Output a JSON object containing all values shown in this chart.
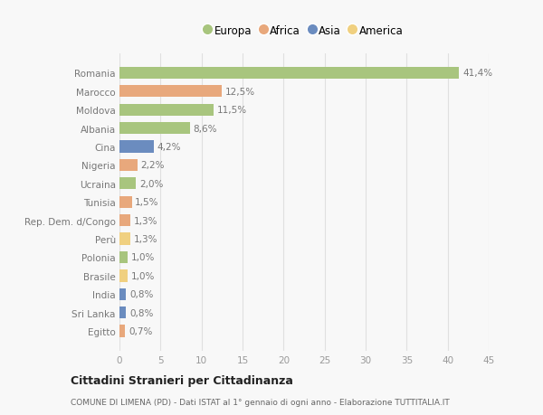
{
  "countries": [
    "Romania",
    "Marocco",
    "Moldova",
    "Albania",
    "Cina",
    "Nigeria",
    "Ucraina",
    "Tunisia",
    "Rep. Dem. d/Congo",
    "Perù",
    "Polonia",
    "Brasile",
    "India",
    "Sri Lanka",
    "Egitto"
  ],
  "values": [
    41.4,
    12.5,
    11.5,
    8.6,
    4.2,
    2.2,
    2.0,
    1.5,
    1.3,
    1.3,
    1.0,
    1.0,
    0.8,
    0.8,
    0.7
  ],
  "labels": [
    "41,4%",
    "12,5%",
    "11,5%",
    "8,6%",
    "4,2%",
    "2,2%",
    "2,0%",
    "1,5%",
    "1,3%",
    "1,3%",
    "1,0%",
    "1,0%",
    "0,8%",
    "0,8%",
    "0,7%"
  ],
  "continents": [
    "Europa",
    "Africa",
    "Europa",
    "Europa",
    "Asia",
    "Africa",
    "Europa",
    "Africa",
    "Africa",
    "America",
    "Europa",
    "America",
    "Asia",
    "Asia",
    "Africa"
  ],
  "colors": {
    "Europa": "#a8c57e",
    "Africa": "#e8a87c",
    "Asia": "#6b8cbf",
    "America": "#f0d080"
  },
  "legend_order": [
    "Europa",
    "Africa",
    "Asia",
    "America"
  ],
  "xlim": [
    0,
    45
  ],
  "xticks": [
    0,
    5,
    10,
    15,
    20,
    25,
    30,
    35,
    40,
    45
  ],
  "title": "Cittadini Stranieri per Cittadinanza",
  "subtitle": "COMUNE DI LIMENA (PD) - Dati ISTAT al 1° gennaio di ogni anno - Elaborazione TUTTITALIA.IT",
  "bg_color": "#f8f8f8",
  "grid_color": "#e0e0e0",
  "bar_height": 0.65,
  "label_color": "#777777",
  "tick_color": "#999999"
}
